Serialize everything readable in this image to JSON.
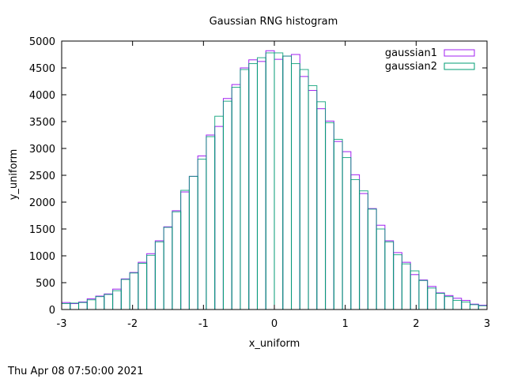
{
  "footer_timestamp": "Thu Apr 08 07:50:00 2021",
  "colors": {
    "gaussian1": "#a020f0",
    "gaussian2": "#009e73",
    "overlap": "#1f6e7a",
    "axis": "#000000"
  },
  "chart_data": {
    "type": "bar",
    "title": "Gaussian RNG histogram",
    "xlabel": "x_uniform",
    "ylabel": "y_uniform",
    "xlim": [
      -3,
      3
    ],
    "ylim": [
      0,
      5000
    ],
    "xticks": [
      "-3",
      "-2",
      "-1",
      "0",
      "1",
      "2",
      "3"
    ],
    "yticks": [
      "0",
      "500",
      "1000",
      "1500",
      "2000",
      "2500",
      "3000",
      "3500",
      "4000",
      "4500",
      "5000"
    ],
    "legend_position": "top-right",
    "bin_width": 0.12,
    "x": [
      -3.0,
      -2.88,
      -2.76,
      -2.64,
      -2.52,
      -2.4,
      -2.28,
      -2.16,
      -2.04,
      -1.92,
      -1.8,
      -1.68,
      -1.56,
      -1.44,
      -1.32,
      -1.2,
      -1.08,
      -0.96,
      -0.84,
      -0.72,
      -0.6,
      -0.48,
      -0.36,
      -0.24,
      -0.12,
      0.0,
      0.12,
      0.24,
      0.36,
      0.48,
      0.6,
      0.72,
      0.84,
      0.96,
      1.08,
      1.2,
      1.32,
      1.44,
      1.56,
      1.68,
      1.8,
      1.92,
      2.04,
      2.16,
      2.28,
      2.4,
      2.52,
      2.64,
      2.76,
      2.88
    ],
    "series": [
      {
        "name": "gaussian1",
        "values": [
          130,
          110,
          140,
          200,
          250,
          290,
          380,
          570,
          690,
          880,
          1040,
          1280,
          1540,
          1840,
          2190,
          2480,
          2860,
          3250,
          3410,
          3930,
          4190,
          4500,
          4650,
          4620,
          4820,
          4660,
          4720,
          4750,
          4340,
          4080,
          3740,
          3510,
          3130,
          2940,
          2510,
          2160,
          1880,
          1570,
          1280,
          1060,
          880,
          650,
          550,
          430,
          310,
          260,
          210,
          170,
          100,
          80
        ]
      },
      {
        "name": "gaussian2",
        "values": [
          110,
          120,
          130,
          180,
          240,
          280,
          350,
          560,
          680,
          860,
          1010,
          1260,
          1530,
          1820,
          2220,
          2480,
          2800,
          3220,
          3600,
          3880,
          4140,
          4470,
          4580,
          4690,
          4780,
          4780,
          4720,
          4580,
          4470,
          4170,
          3870,
          3480,
          3170,
          2830,
          2420,
          2210,
          1870,
          1500,
          1260,
          1020,
          850,
          720,
          540,
          400,
          300,
          240,
          170,
          140,
          90,
          70
        ]
      }
    ]
  }
}
